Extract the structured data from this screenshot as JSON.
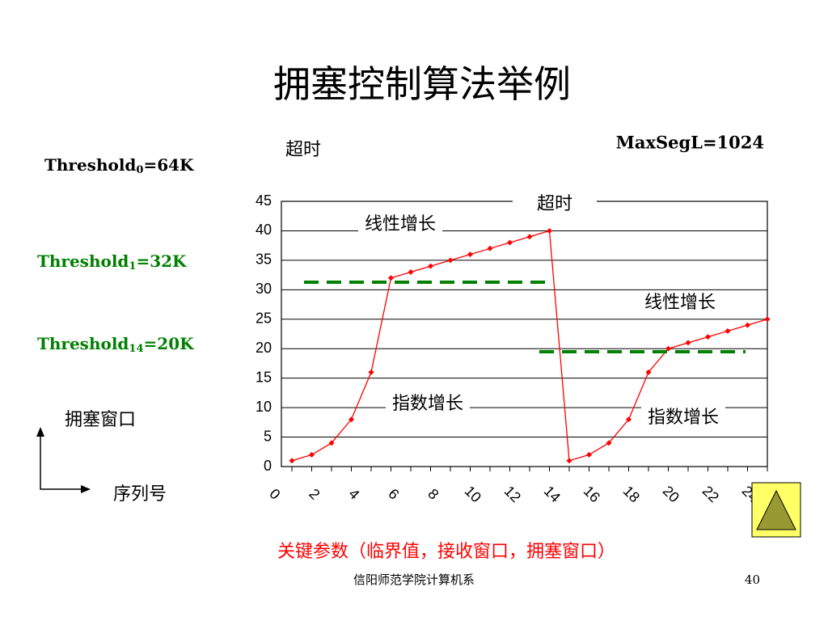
{
  "title": "拥塞控制算法举例",
  "timeout_label": "超时",
  "max_seg": "MaxSegL=1024",
  "thresholds": [
    {
      "base": "Threshold",
      "sub": "0",
      "rest": "=64K",
      "color": "#000000"
    },
    {
      "base": "Threshold",
      "sub": "1",
      "rest": "=32K",
      "color": "#008000"
    },
    {
      "base": "Threshold",
      "sub": "14",
      "rest": "=20K",
      "color": "#008000"
    }
  ],
  "axes_legend": {
    "y": "拥塞窗口",
    "x": "序列号"
  },
  "chart_data": {
    "type": "line",
    "categories": [
      "0",
      null,
      "2",
      null,
      "4",
      null,
      "6",
      null,
      "8",
      null,
      "10",
      null,
      "12",
      null,
      "14",
      null,
      "16",
      null,
      "18",
      null,
      "20",
      null,
      "22",
      null,
      "24"
    ],
    "series": [
      {
        "name": "拥塞窗口",
        "color": "#ff0000",
        "values": [
          1,
          2,
          4,
          8,
          16,
          32,
          33,
          34,
          35,
          36,
          37,
          38,
          39,
          40,
          1,
          2,
          4,
          8,
          16,
          20,
          21,
          22,
          23,
          24,
          25
        ]
      }
    ],
    "ylim": [
      0,
      45
    ],
    "yticks": [
      0,
      5,
      10,
      15,
      20,
      25,
      30,
      35,
      40,
      45
    ],
    "grid": true,
    "annotations": [
      "线性增长",
      "超时",
      "线性增长",
      "指数增长",
      "指数增长"
    ]
  },
  "note": "关键参数（临界值，接收窗口，拥塞窗口）",
  "footer": {
    "org": "信阳师范学院计算机系",
    "page": "40"
  }
}
